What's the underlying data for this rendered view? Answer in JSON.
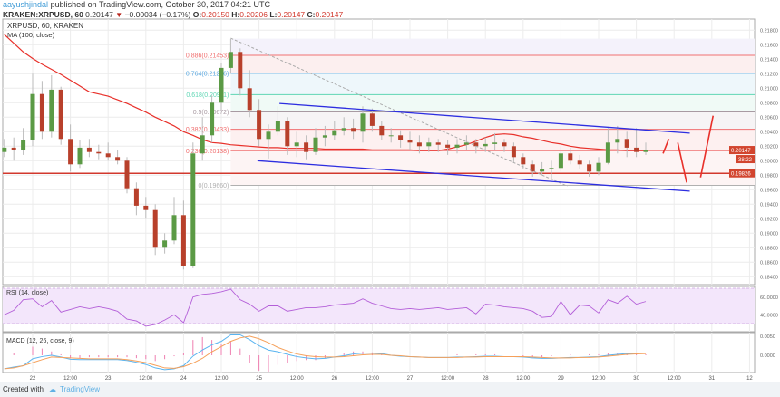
{
  "header": {
    "author": "aayushjindal",
    "published": "published on TradingView.com, October 30, 2017 04:21 UTC",
    "symbol": "KRAKEN:XRPUSD, 60",
    "price": "0.20147",
    "change": "−0.00034 (−0.17%)",
    "o_label": "O:",
    "o": "0.20150",
    "h_label": "H:",
    "h": "0.20206",
    "l_label": "L:",
    "l": "0.20147",
    "c_label": "C:",
    "c": "0.20147"
  },
  "legend": {
    "main": "XRPUSD, 60, KRAKEN",
    "ma": "MA (100, close)",
    "rsi": "RSI (14, close)",
    "macd": "MACD (12, 26, close, 9)"
  },
  "footer": {
    "created": "Created with",
    "brand": "TradingView"
  },
  "chart_data": {
    "type": "candlestick",
    "symbol": "XRPUSD",
    "interval": "60",
    "colors": {
      "up": "#5b9a45",
      "down": "#b8402b",
      "ma": "#e8302a",
      "channel": "#2d2ee0",
      "support": "#d2382d",
      "rsi": "#b35ed8",
      "rsi_band": "#f3e6fb",
      "macd": "#5ab4f0",
      "signal": "#f5a05a",
      "hist": "#ef7fb0",
      "grid": "#ececec"
    },
    "candles": [
      [
        "10-21 15:00",
        0.2012,
        0.203,
        0.2005,
        0.2018
      ],
      [
        "10-21 18:00",
        0.2018,
        0.2032,
        0.2,
        0.2015
      ],
      [
        "10-21 21:00",
        0.2015,
        0.2045,
        0.2008,
        0.2028
      ],
      [
        "10-22 00:00",
        0.2028,
        0.212,
        0.202,
        0.2092
      ],
      [
        "10-22 03:00",
        0.2092,
        0.211,
        0.203,
        0.204
      ],
      [
        "10-22 06:00",
        0.204,
        0.2118,
        0.2032,
        0.2098
      ],
      [
        "10-22 09:00",
        0.2098,
        0.2102,
        0.2022,
        0.203
      ],
      [
        "10-22 12:00",
        0.203,
        0.205,
        0.1985,
        0.1995
      ],
      [
        "10-22 15:00",
        0.1995,
        0.2028,
        0.199,
        0.2018
      ],
      [
        "10-22 18:00",
        0.2018,
        0.203,
        0.2005,
        0.2012
      ],
      [
        "10-22 21:00",
        0.2012,
        0.2022,
        0.2002,
        0.201
      ],
      [
        "10-23 00:00",
        0.201,
        0.2025,
        0.2,
        0.2005
      ],
      [
        "10-23 03:00",
        0.2005,
        0.2015,
        0.1995,
        0.2
      ],
      [
        "10-23 06:00",
        0.2,
        0.2005,
        0.1955,
        0.1962
      ],
      [
        "10-23 09:00",
        0.1962,
        0.197,
        0.1925,
        0.1938
      ],
      [
        "10-23 12:00",
        0.1938,
        0.195,
        0.192,
        0.1932
      ],
      [
        "10-23 15:00",
        0.1932,
        0.194,
        0.187,
        0.188
      ],
      [
        "10-23 18:00",
        0.188,
        0.19,
        0.1872,
        0.189
      ],
      [
        "10-23 21:00",
        0.189,
        0.195,
        0.1885,
        0.1925
      ],
      [
        "10-24 00:00",
        0.1925,
        0.1945,
        0.185,
        0.1855
      ],
      [
        "10-24 03:00",
        0.1855,
        0.2025,
        0.1852,
        0.201
      ],
      [
        "10-24 06:00",
        0.201,
        0.206,
        0.2,
        0.2035
      ],
      [
        "10-24 09:00",
        0.2035,
        0.209,
        0.2025,
        0.208
      ],
      [
        "10-24 12:00",
        0.208,
        0.2135,
        0.207,
        0.2128
      ],
      [
        "10-24 15:00",
        0.2128,
        0.2168,
        0.212,
        0.215
      ],
      [
        "10-24 18:00",
        0.215,
        0.2155,
        0.209,
        0.21
      ],
      [
        "10-24 21:00",
        0.21,
        0.2125,
        0.206,
        0.207
      ],
      [
        "10-25 00:00",
        0.207,
        0.2085,
        0.202,
        0.203
      ],
      [
        "10-25 03:00",
        0.203,
        0.205,
        0.2003,
        0.204
      ],
      [
        "10-25 06:00",
        0.204,
        0.2075,
        0.2035,
        0.2055
      ],
      [
        "10-25 09:00",
        0.2055,
        0.206,
        0.2008,
        0.202
      ],
      [
        "10-25 12:00",
        0.202,
        0.204,
        0.2005,
        0.2025
      ],
      [
        "10-25 15:00",
        0.2025,
        0.2035,
        0.2002,
        0.2012
      ],
      [
        "10-25 18:00",
        0.2012,
        0.2045,
        0.2008,
        0.2032
      ],
      [
        "10-25 21:00",
        0.2032,
        0.2048,
        0.202,
        0.2035
      ],
      [
        "10-26 00:00",
        0.2035,
        0.2055,
        0.2028,
        0.2042
      ],
      [
        "10-26 03:00",
        0.2042,
        0.206,
        0.2035,
        0.2045
      ],
      [
        "10-26 06:00",
        0.2045,
        0.2058,
        0.203,
        0.204
      ],
      [
        "10-26 09:00",
        0.204,
        0.2075,
        0.2025,
        0.2065
      ],
      [
        "10-26 12:00",
        0.2065,
        0.2072,
        0.204,
        0.2048
      ],
      [
        "10-26 15:00",
        0.2048,
        0.2055,
        0.2028,
        0.2035
      ],
      [
        "10-26 18:00",
        0.2035,
        0.2045,
        0.2025,
        0.2035
      ],
      [
        "10-26 21:00",
        0.2035,
        0.2042,
        0.2018,
        0.2028
      ],
      [
        "10-27 00:00",
        0.2028,
        0.204,
        0.2015,
        0.2025
      ],
      [
        "10-27 03:00",
        0.2025,
        0.2035,
        0.201,
        0.202
      ],
      [
        "10-27 06:00",
        0.202,
        0.2032,
        0.2012,
        0.2025
      ],
      [
        "10-27 09:00",
        0.2025,
        0.203,
        0.2012,
        0.2022
      ],
      [
        "10-27 12:00",
        0.2022,
        0.2028,
        0.2008,
        0.2018
      ],
      [
        "10-27 15:00",
        0.2018,
        0.203,
        0.201,
        0.2022
      ],
      [
        "10-27 18:00",
        0.2022,
        0.2035,
        0.2015,
        0.2025
      ],
      [
        "10-27 21:00",
        0.2025,
        0.203,
        0.201,
        0.202
      ],
      [
        "10-28 00:00",
        0.202,
        0.2032,
        0.2012,
        0.2023
      ],
      [
        "10-28 03:00",
        0.2023,
        0.2038,
        0.2015,
        0.2025
      ],
      [
        "10-28 06:00",
        0.2025,
        0.203,
        0.2012,
        0.202
      ],
      [
        "10-28 09:00",
        0.202,
        0.2025,
        0.1998,
        0.2005
      ],
      [
        "10-28 12:00",
        0.2005,
        0.201,
        0.1988,
        0.1995
      ],
      [
        "10-28 15:00",
        0.1995,
        0.2,
        0.1978,
        0.1985
      ],
      [
        "10-28 18:00",
        0.1985,
        0.1998,
        0.198,
        0.1988
      ],
      [
        "10-28 21:00",
        0.1988,
        0.2,
        0.1975,
        0.199
      ],
      [
        "10-29 00:00",
        0.199,
        0.202,
        0.1985,
        0.201
      ],
      [
        "10-29 03:00",
        0.201,
        0.2018,
        0.1995,
        0.2
      ],
      [
        "10-29 06:00",
        0.2,
        0.2008,
        0.1988,
        0.1995
      ],
      [
        "10-29 09:00",
        0.1995,
        0.2,
        0.1978,
        0.1985
      ],
      [
        "10-29 12:00",
        0.1985,
        0.2005,
        0.198,
        0.1997
      ],
      [
        "10-29 15:00",
        0.1997,
        0.2045,
        0.1995,
        0.2025
      ],
      [
        "10-29 18:00",
        0.2025,
        0.2048,
        0.201,
        0.203
      ],
      [
        "10-29 21:00",
        0.203,
        0.204,
        0.2005,
        0.2018
      ],
      [
        "10-30 00:00",
        0.2018,
        0.2045,
        0.2005,
        0.2012
      ],
      [
        "10-30 03:00",
        0.2012,
        0.2025,
        0.2008,
        0.20147
      ]
    ],
    "ma100": [
      0.2174,
      0.2162,
      0.215,
      0.2141,
      0.2133,
      0.2126,
      0.2119,
      0.2111,
      0.2103,
      0.2095,
      0.2092,
      0.2089,
      0.2084,
      0.2079,
      0.2073,
      0.2067,
      0.206,
      0.2054,
      0.2048,
      0.204,
      0.2035,
      0.2029,
      0.2025,
      0.2024,
      0.2022,
      0.2021,
      0.202,
      0.2019,
      0.2018,
      0.2018,
      0.2017,
      0.2017,
      0.2017,
      0.2017,
      0.2016,
      0.2016,
      0.2016,
      0.2016,
      0.2016,
      0.2015,
      0.2015,
      0.2015,
      0.2015,
      0.2015,
      0.2014,
      0.2014,
      0.2014,
      0.2016,
      0.2019,
      0.2022,
      0.2027,
      0.2032,
      0.2036,
      0.2037,
      0.2036,
      0.2033,
      0.2031,
      0.2028,
      0.2025,
      0.2023,
      0.202,
      0.2018,
      0.2017,
      0.2016,
      0.2015,
      0.2015,
      0.2014,
      0.2014,
      0.2014
    ],
    "fibonacci": {
      "start": "10-24 15:00",
      "top_level": 0.21684,
      "levels": [
        {
          "label": "0.886(0.21453)",
          "value": 0.21453,
          "color": "#f07070",
          "fill": "#fcefef"
        },
        {
          "label": "0.764(0.21206)",
          "value": 0.21206,
          "color": "#5aa8e0",
          "fill": "#eef7fb"
        },
        {
          "label": "0.618(0.20911)",
          "value": 0.20911,
          "color": "#5fd6b4",
          "fill": "#f0faf6"
        },
        {
          "label": "0.5(0.20672)",
          "value": 0.20672,
          "color": "#a89aa2",
          "fill": "#f6f4f5"
        },
        {
          "label": "0.382(0.20433)",
          "value": 0.20433,
          "color": "#f07070",
          "fill": "#fdf0f0"
        },
        {
          "label": "0.236(0.20138)",
          "value": 0.20138,
          "color": "#f07070",
          "fill": "#fdf4f4"
        },
        {
          "label": "0(0.19660)",
          "value": 0.1966,
          "color": "#b0b0b0",
          "fill": ""
        }
      ],
      "top_fill": "#f4f2fb"
    },
    "channel": [
      [
        [
          "10-25 06:30",
          0.2079
        ],
        [
          "10-30 17:00",
          0.2038
        ]
      ],
      [
        [
          "10-24 23:30",
          0.2
        ],
        [
          "10-30 17:00",
          0.1958
        ]
      ]
    ],
    "trendline": [
      [
        "10-24 15:00",
        0.2169
      ],
      [
        "10-29 02:00",
        0.1965
      ]
    ],
    "forecast_path": [
      [
        [
          "10-30 08:30",
          0.201
        ],
        [
          "10-30 10:20",
          0.203
        ]
      ],
      [
        [
          "10-30 13:10",
          0.2025
        ],
        [
          "10-30 16:00",
          0.197
        ]
      ],
      [
        [
          "10-30 20:25",
          0.1977
        ],
        [
          "10-31 00:25",
          0.2062
        ]
      ]
    ],
    "support": {
      "value": 0.19826,
      "label": "0.19826"
    },
    "last_price": {
      "value": 0.20147,
      "label": "0.20147",
      "countdown": "38:22"
    },
    "price_ticks": [
      "0.21800",
      "0.21600",
      "0.21400",
      "0.21200",
      "0.21000",
      "0.20800",
      "0.20600",
      "0.20400",
      "0.20200",
      "0.20000",
      "0.19800",
      "0.19600",
      "0.19400",
      "0.19200",
      "0.19000",
      "0.18800",
      "0.18600",
      "0.18400"
    ],
    "time_ticks": [
      {
        "t": "10-22 00:00",
        "label": "22"
      },
      {
        "t": "10-22 12:00",
        "label": "12:00"
      },
      {
        "t": "10-23 00:00",
        "label": "23"
      },
      {
        "t": "10-23 12:00",
        "label": "12:00"
      },
      {
        "t": "10-24 00:00",
        "label": "24"
      },
      {
        "t": "10-24 12:00",
        "label": "12:00"
      },
      {
        "t": "10-25 00:00",
        "label": "25"
      },
      {
        "t": "10-25 12:00",
        "label": "12:00"
      },
      {
        "t": "10-26 00:00",
        "label": "26"
      },
      {
        "t": "10-26 12:00",
        "label": "12:00"
      },
      {
        "t": "10-27 00:00",
        "label": "27"
      },
      {
        "t": "10-27 12:00",
        "label": "12:00"
      },
      {
        "t": "10-28 00:00",
        "label": "28"
      },
      {
        "t": "10-28 12:00",
        "label": "12:00"
      },
      {
        "t": "10-29 00:00",
        "label": "29"
      },
      {
        "t": "10-29 12:00",
        "label": "12:00"
      },
      {
        "t": "10-30 00:00",
        "label": "30"
      },
      {
        "t": "10-30 12:00",
        "label": "12:00"
      },
      {
        "t": "10-31 00:00",
        "label": "31"
      },
      {
        "t": "10-31 12:00",
        "label": "12"
      }
    ],
    "rsi": {
      "values": [
        40,
        45,
        57,
        58,
        49,
        56,
        43,
        46,
        49,
        47,
        49,
        47,
        44,
        35,
        33,
        27,
        29,
        34,
        40,
        31,
        60,
        63,
        64,
        66,
        69,
        57,
        52,
        44,
        50,
        50,
        44,
        46,
        48,
        48,
        49,
        51,
        52,
        53,
        58,
        53,
        50,
        47,
        46,
        47,
        46,
        47,
        48,
        46,
        47,
        48,
        41,
        52,
        51,
        49,
        48,
        47,
        44,
        37,
        38,
        55,
        40,
        51,
        50,
        42,
        57,
        53,
        61,
        52,
        55
      ],
      "band": [
        30,
        70
      ],
      "ticks": [
        {
          "value": 60,
          "label": "60.0000"
        },
        {
          "value": 40,
          "label": "40.0000"
        }
      ]
    },
    "macd": {
      "macd": [
        -0.0031,
        -0.0027,
        -0.0024,
        -0.0008,
        -0.0003,
        0.0,
        -0.0004,
        -0.0009,
        -0.001,
        -0.001,
        -0.001,
        -0.001,
        -0.001,
        -0.0012,
        -0.0016,
        -0.0021,
        -0.0029,
        -0.0033,
        -0.0031,
        -0.0024,
        -0.0002,
        0.0012,
        0.0024,
        0.0032,
        0.0047,
        0.0047,
        0.0036,
        0.0022,
        0.0012,
        0.0008,
        0.0002,
        -0.0003,
        -0.0006,
        -0.0008,
        -0.0007,
        -0.0004,
        -0.0001,
        0.0003,
        0.0005,
        0.0005,
        0.0004,
        0.0,
        -0.0002,
        -0.0003,
        -0.0004,
        -0.0005,
        -0.0005,
        -0.0005,
        -0.0004,
        -0.0004,
        -0.0003,
        -0.0002,
        -0.0002,
        -0.0003,
        -0.0003,
        -0.0004,
        -0.0006,
        -0.0007,
        -0.0007,
        -0.0006,
        -0.0005,
        -0.0005,
        -0.0004,
        -0.0003,
        0.0,
        0.0002,
        0.0004,
        0.0004,
        0.0005
      ],
      "signal": [
        -0.0031,
        -0.0029,
        -0.0024,
        -0.0017,
        -0.001,
        -0.0004,
        -0.0005,
        -0.0006,
        -0.0007,
        -0.0008,
        -0.0008,
        -0.0008,
        -0.0008,
        -0.001,
        -0.0013,
        -0.0017,
        -0.0023,
        -0.0029,
        -0.003,
        -0.0026,
        -0.0018,
        -0.0007,
        0.0008,
        0.002,
        0.0032,
        0.004,
        0.0044,
        0.0038,
        0.0029,
        0.0018,
        0.001,
        0.0003,
        -0.0001,
        -0.0003,
        -0.0004,
        -0.0004,
        -0.0003,
        -0.0001,
        0.0001,
        0.0002,
        0.0002,
        0.0,
        -0.0001,
        -0.0003,
        -0.0004,
        -0.0005,
        -0.0005,
        -0.0005,
        -0.0005,
        -0.0004,
        -0.0004,
        -0.0003,
        -0.0003,
        -0.0003,
        -0.0003,
        -0.0003,
        -0.0004,
        -0.0005,
        -0.0006,
        -0.0006,
        -0.0006,
        -0.0005,
        -0.0005,
        -0.0004,
        -0.0002,
        0.0,
        0.0002,
        0.0003,
        0.0004
      ],
      "ticks": [
        {
          "value": 0.005,
          "label": "0.0050"
        },
        {
          "value": 0,
          "label": "0.0000"
        }
      ]
    }
  }
}
